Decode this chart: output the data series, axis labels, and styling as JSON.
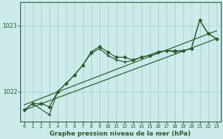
{
  "xlabel": "Graphe pression niveau de la mer (hPa)",
  "bg_color": "#cceaea",
  "grid_color": "#aad4d4",
  "line_color": "#2d5a2d",
  "x_ticks": [
    0,
    1,
    2,
    3,
    4,
    5,
    6,
    7,
    8,
    9,
    10,
    11,
    12,
    13,
    14,
    15,
    16,
    17,
    18,
    19,
    20,
    21,
    22,
    23
  ],
  "y_ticks": [
    1022,
    1023
  ],
  "ylim": [
    1021.55,
    1023.35
  ],
  "xlim": [
    -0.5,
    23.5
  ],
  "series1_x": [
    0,
    1,
    2,
    3,
    4,
    5,
    6,
    7,
    8,
    9,
    10,
    11,
    12,
    13,
    14,
    15,
    16,
    17,
    18,
    19,
    20,
    21,
    22,
    23
  ],
  "series1_y": [
    1021.72,
    1021.82,
    1021.82,
    1021.77,
    1022.0,
    1022.12,
    1022.25,
    1022.4,
    1022.6,
    1022.68,
    1022.6,
    1022.52,
    1022.52,
    1022.48,
    1022.52,
    1022.55,
    1022.6,
    1022.62,
    1022.62,
    1022.62,
    1022.65,
    1023.08,
    1022.88,
    1022.8
  ],
  "series2_x": [
    0,
    1,
    3,
    4,
    6,
    7,
    8,
    9,
    10,
    11,
    12,
    13,
    14,
    15,
    16,
    17,
    18,
    19,
    20,
    21,
    22,
    23
  ],
  "series2_y": [
    1021.72,
    1021.82,
    1021.65,
    1022.0,
    1022.25,
    1022.4,
    1022.58,
    1022.65,
    1022.55,
    1022.48,
    1022.45,
    1022.47,
    1022.52,
    1022.55,
    1022.6,
    1022.62,
    1022.6,
    1022.62,
    1022.65,
    1023.08,
    1022.88,
    1022.8
  ],
  "trend1_x": [
    0,
    23
  ],
  "trend1_y": [
    1021.72,
    1022.8
  ],
  "trend2_x": [
    0,
    23
  ],
  "trend2_y": [
    1021.8,
    1022.92
  ]
}
